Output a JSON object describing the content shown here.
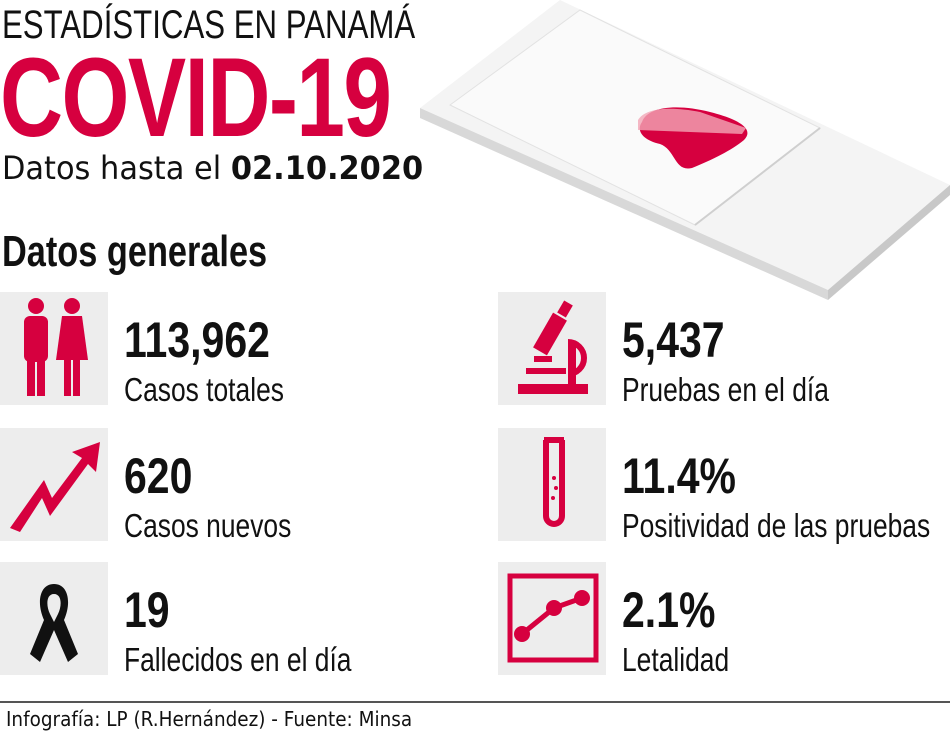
{
  "header": {
    "kicker": "ESTADÍSTICAS EN PANAMÁ",
    "title": "COVID-19",
    "date_prefix": "Datos hasta el",
    "date": "02.10.2020"
  },
  "section_title": "Datos generales",
  "colors": {
    "accent": "#d6003f",
    "icon_bg": "#ededed"
  },
  "stats": [
    {
      "value": "113,962",
      "label": "Casos totales",
      "icon": "people-icon"
    },
    {
      "value": "620",
      "label": "Casos nuevos",
      "icon": "trend-up-arrow-icon"
    },
    {
      "value": "19",
      "label": "Fallecidos en el día",
      "icon": "mourning-ribbon-icon"
    },
    {
      "value": "5,437",
      "label": "Pruebas en el día",
      "icon": "microscope-icon"
    },
    {
      "value": "11.4%",
      "label": "Positividad de las pruebas",
      "icon": "test-tube-icon"
    },
    {
      "value": "2.1%",
      "label": "Letalidad",
      "icon": "line-chart-icon"
    }
  ],
  "footer": {
    "credit": "Infografía: LP (R.Hernández) - Fuente: Minsa"
  }
}
